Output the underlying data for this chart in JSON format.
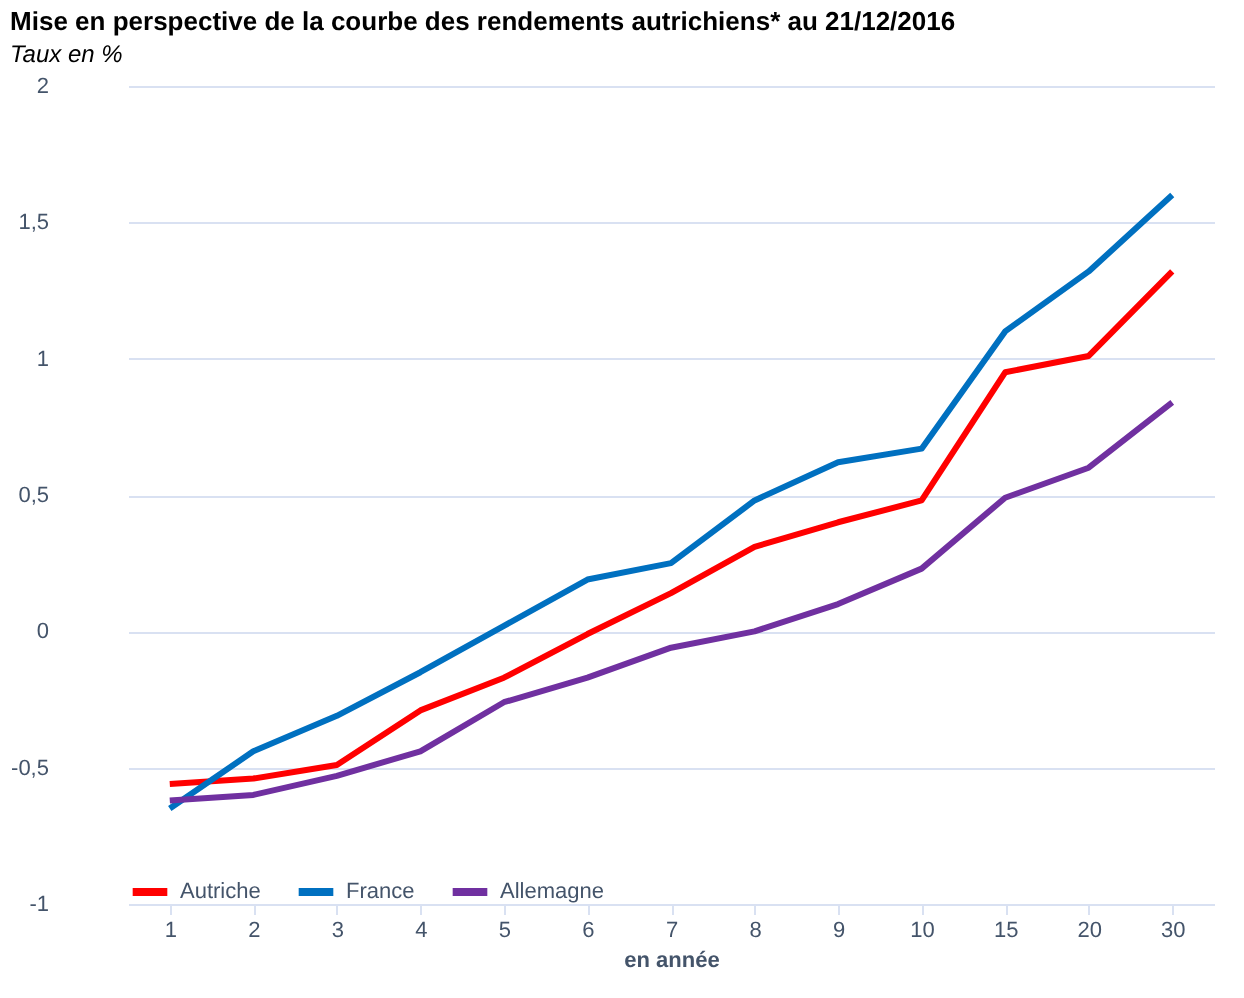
{
  "chart_data": {
    "type": "line",
    "title": "Mise en perspective de la courbe des rendements autrichiens* au 21/12/2016",
    "xlabel": "en année",
    "annotations": [
      "Taux en %"
    ],
    "categories": [
      "1",
      "2",
      "3",
      "4",
      "5",
      "6",
      "7",
      "8",
      "9",
      "10",
      "15",
      "20",
      "30"
    ],
    "series": [
      {
        "name": "Autriche",
        "color": "#ff0000",
        "values": [
          -0.56,
          -0.54,
          -0.49,
          -0.29,
          -0.17,
          -0.01,
          0.14,
          0.31,
          0.4,
          0.48,
          0.95,
          1.01,
          1.32
        ]
      },
      {
        "name": "France",
        "color": "#0070c0",
        "values": [
          -0.65,
          -0.44,
          -0.31,
          -0.15,
          0.02,
          0.19,
          0.25,
          0.48,
          0.62,
          0.67,
          1.1,
          1.32,
          1.6
        ]
      },
      {
        "name": "Allemagne",
        "color": "#7030a0",
        "values": [
          -0.62,
          -0.6,
          -0.53,
          -0.44,
          -0.26,
          -0.17,
          -0.06,
          0.0,
          0.1,
          0.23,
          0.49,
          0.6,
          0.84
        ]
      }
    ],
    "ylim": [
      -1,
      2
    ],
    "yticks": [
      {
        "value": -1,
        "label": "-1"
      },
      {
        "value": -0.5,
        "label": "-0,5"
      },
      {
        "value": 0,
        "label": "0"
      },
      {
        "value": 0.5,
        "label": "0,5"
      },
      {
        "value": 1,
        "label": "1"
      },
      {
        "value": 1.5,
        "label": "1,5"
      },
      {
        "value": 2,
        "label": "2"
      }
    ],
    "grid": "y",
    "legend": "bottom",
    "marker": "none",
    "line_style": "solid"
  }
}
